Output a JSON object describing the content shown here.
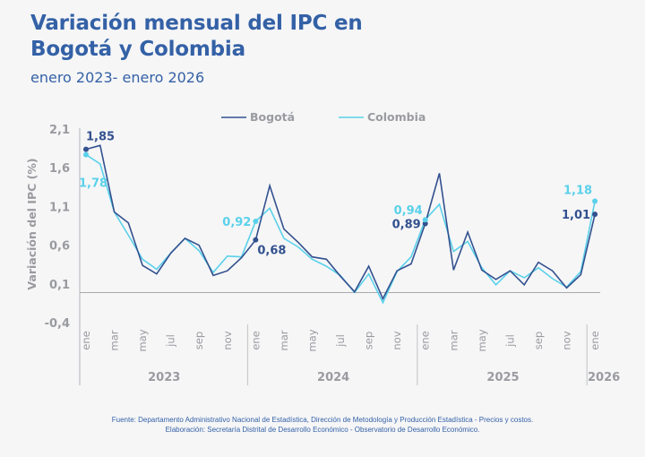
{
  "header": {
    "title": "Variación mensual del IPC en Bogotá y Colombia",
    "subtitle": "enero 2023- enero 2026"
  },
  "footer": {
    "source": "Fuente: Departamento Administrativo Nacional de Estadística, Dirección de Metodología y Producción Estadística - Precios y costos.",
    "elaboration": "Elaboración: Secretaría Distrital de Desarrollo Económico - Observatorio de Desarrollo Económico."
  },
  "chart_data": {
    "type": "line",
    "title": "Variación mensual del IPC en Bogotá y Colombia",
    "subtitle": "enero 2023- enero 2026",
    "xlabel": "",
    "ylabel": "Variación del IPC (%)",
    "ylim": [
      -0.4,
      2.1
    ],
    "yticks": [
      "2,1",
      "1,6",
      "1,1",
      "0,6",
      "0,1",
      "-0,4"
    ],
    "ytick_values": [
      2.1,
      1.6,
      1.1,
      0.6,
      0.1,
      -0.4
    ],
    "baseline": 0,
    "grid": false,
    "legend_position": "top-center",
    "x": [
      "2023-01",
      "2023-02",
      "2023-03",
      "2023-04",
      "2023-05",
      "2023-06",
      "2023-07",
      "2023-08",
      "2023-09",
      "2023-10",
      "2023-11",
      "2023-12",
      "2024-01",
      "2024-02",
      "2024-03",
      "2024-04",
      "2024-05",
      "2024-06",
      "2024-07",
      "2024-08",
      "2024-09",
      "2024-10",
      "2024-11",
      "2024-12",
      "2025-01",
      "2025-02",
      "2025-03",
      "2025-04",
      "2025-05",
      "2025-06",
      "2025-07",
      "2025-08",
      "2025-09",
      "2025-10",
      "2025-11",
      "2025-12",
      "2026-01"
    ],
    "month_tick_labels": [
      {
        "index": 0,
        "label": "ene"
      },
      {
        "index": 2,
        "label": "mar"
      },
      {
        "index": 4,
        "label": "may"
      },
      {
        "index": 6,
        "label": "jul"
      },
      {
        "index": 8,
        "label": "sep"
      },
      {
        "index": 10,
        "label": "nov"
      },
      {
        "index": 12,
        "label": "ene"
      },
      {
        "index": 14,
        "label": "mar"
      },
      {
        "index": 16,
        "label": "may"
      },
      {
        "index": 18,
        "label": "jul"
      },
      {
        "index": 20,
        "label": "sep"
      },
      {
        "index": 22,
        "label": "nov"
      },
      {
        "index": 24,
        "label": "ene"
      },
      {
        "index": 26,
        "label": "mar"
      },
      {
        "index": 28,
        "label": "may"
      },
      {
        "index": 30,
        "label": "jul"
      },
      {
        "index": 32,
        "label": "sep"
      },
      {
        "index": 34,
        "label": "nov"
      },
      {
        "index": 36,
        "label": "ene"
      }
    ],
    "year_groups": [
      {
        "label": "2023",
        "start": 0,
        "end": 11
      },
      {
        "label": "2024",
        "start": 12,
        "end": 23
      },
      {
        "label": "2025",
        "start": 24,
        "end": 35
      },
      {
        "label": "2026",
        "start": 36,
        "end": 36
      }
    ],
    "series": [
      {
        "name": "Bogotá",
        "color": "#33518f",
        "values": [
          1.85,
          1.9,
          1.04,
          0.9,
          0.35,
          0.24,
          0.51,
          0.7,
          0.61,
          0.22,
          0.28,
          0.45,
          0.68,
          1.38,
          0.82,
          0.65,
          0.46,
          0.43,
          0.21,
          0.01,
          0.34,
          -0.08,
          0.28,
          0.37,
          0.89,
          1.54,
          0.29,
          0.78,
          0.29,
          0.17,
          0.28,
          0.1,
          0.39,
          0.28,
          0.06,
          0.23,
          1.01
        ],
        "labels": [
          {
            "index": 0,
            "text": "1,85"
          },
          {
            "index": 12,
            "text": "0,68"
          },
          {
            "index": 24,
            "text": "0,89"
          },
          {
            "index": 36,
            "text": "1,01"
          }
        ]
      },
      {
        "name": "Colombia",
        "color": "#5ad1ea",
        "values": [
          1.78,
          1.66,
          1.04,
          0.74,
          0.43,
          0.3,
          0.51,
          0.7,
          0.54,
          0.26,
          0.47,
          0.46,
          0.92,
          1.09,
          0.7,
          0.59,
          0.43,
          0.34,
          0.22,
          0.0,
          0.24,
          -0.13,
          0.27,
          0.46,
          0.94,
          1.14,
          0.53,
          0.66,
          0.32,
          0.1,
          0.28,
          0.19,
          0.32,
          0.18,
          0.07,
          0.27,
          1.18
        ],
        "labels": [
          {
            "index": 0,
            "text": "1,78"
          },
          {
            "index": 12,
            "text": "0,92"
          },
          {
            "index": 24,
            "text": "0,94"
          },
          {
            "index": 36,
            "text": "1,18"
          }
        ]
      }
    ]
  }
}
